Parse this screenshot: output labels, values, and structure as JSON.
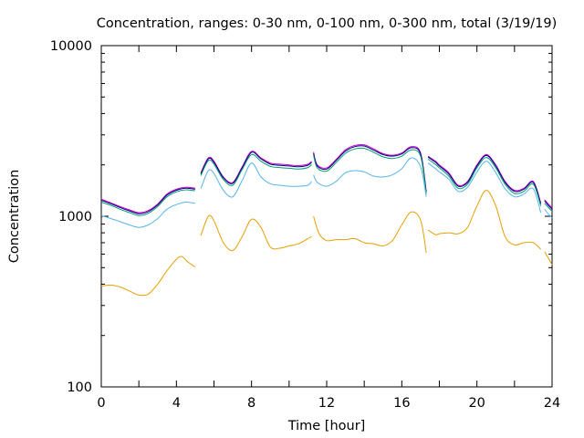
{
  "chart_data": {
    "type": "line",
    "title": "Concentration, ranges: 0-30 nm, 0-100 nm, 0-300 nm, total (3/19/19)",
    "xlabel": "Time [hour]",
    "ylabel": "Concentration",
    "xlim": [
      0,
      24
    ],
    "ylim": [
      100,
      10000
    ],
    "yscale": "log",
    "grid": false,
    "legend": "none",
    "x_ticks": [
      "0",
      "4",
      "8",
      "12",
      "16",
      "20",
      "24"
    ],
    "y_ticks": [
      "100",
      "1000",
      "10000"
    ],
    "series": [
      {
        "color": "#cc00cc",
        "segments": [
          {
            "x": [
              0,
              0.5,
              1,
              1.5,
              2,
              2.5,
              3,
              3.5,
              4,
              4.5,
              5
            ],
            "y": [
              1260,
              1200,
              1140,
              1090,
              1050,
              1080,
              1180,
              1350,
              1440,
              1480,
              1460
            ]
          },
          {
            "x": [
              5.3,
              5.7,
              6,
              6.5,
              7,
              7.5,
              8,
              8.5,
              9,
              9.5,
              10,
              10.5,
              11,
              11.2
            ],
            "y": [
              1800,
              2200,
              2100,
              1700,
              1580,
              1950,
              2400,
              2200,
              2050,
              2020,
              2000,
              1980,
              2020,
              2100
            ]
          },
          {
            "x": [
              11.3,
              11.5,
              12,
              12.5,
              13,
              13.5,
              14,
              14.5,
              15,
              15.5,
              16,
              16.5,
              17,
              17.3
            ],
            "y": [
              2380,
              2000,
              1920,
              2150,
              2450,
              2600,
              2620,
              2480,
              2330,
              2280,
              2350,
              2560,
              2350,
              1400
            ]
          },
          {
            "x": [
              17.4,
              17.8,
              18,
              18.5,
              19,
              19.5,
              20,
              20.5,
              21,
              21.5,
              22,
              22.5,
              23,
              23.4
            ],
            "y": [
              2250,
              2100,
              2000,
              1800,
              1520,
              1600,
              2000,
              2300,
              2000,
              1600,
              1420,
              1460,
              1600,
              1200
            ]
          },
          {
            "x": [
              23.6,
              23.8,
              24
            ],
            "y": [
              1250,
              1180,
              1120
            ]
          }
        ]
      },
      {
        "color": "#000080",
        "segments": [
          {
            "x": [
              0,
              0.5,
              1,
              1.5,
              2,
              2.5,
              3,
              3.5,
              4,
              4.5,
              5
            ],
            "y": [
              1240,
              1185,
              1125,
              1075,
              1035,
              1065,
              1165,
              1330,
              1420,
              1460,
              1440
            ]
          },
          {
            "x": [
              5.3,
              5.7,
              6,
              6.5,
              7,
              7.5,
              8,
              8.5,
              9,
              9.5,
              10,
              10.5,
              11,
              11.2
            ],
            "y": [
              1770,
              2170,
              2070,
              1680,
              1560,
              1920,
              2370,
              2170,
              2020,
              1990,
              1970,
              1950,
              1990,
              2070
            ]
          },
          {
            "x": [
              11.3,
              11.5,
              12,
              12.5,
              13,
              13.5,
              14,
              14.5,
              15,
              15.5,
              16,
              16.5,
              17,
              17.3
            ],
            "y": [
              2340,
              1970,
              1890,
              2120,
              2410,
              2560,
              2580,
              2440,
              2300,
              2250,
              2320,
              2520,
              2320,
              1380
            ]
          },
          {
            "x": [
              17.4,
              17.8,
              18,
              18.5,
              19,
              19.5,
              20,
              20.5,
              21,
              21.5,
              22,
              22.5,
              23,
              23.4
            ],
            "y": [
              2220,
              2070,
              1970,
              1770,
              1500,
              1580,
              1970,
              2270,
              1970,
              1580,
              1400,
              1440,
              1580,
              1180
            ]
          },
          {
            "x": [
              23.6,
              23.8,
              24
            ],
            "y": [
              1230,
              1160,
              1100
            ]
          }
        ]
      },
      {
        "color": "#009e73",
        "segments": [
          {
            "x": [
              0,
              0.5,
              1,
              1.5,
              2,
              2.5,
              3,
              3.5,
              4,
              4.5,
              5
            ],
            "y": [
              1210,
              1160,
              1100,
              1050,
              1010,
              1040,
              1140,
              1300,
              1390,
              1430,
              1410
            ]
          },
          {
            "x": [
              5.3,
              5.7,
              6,
              6.5,
              7,
              7.5,
              8,
              8.5,
              9,
              9.5,
              10,
              10.5,
              11,
              11.2
            ],
            "y": [
              1730,
              2120,
              2020,
              1640,
              1520,
              1880,
              2300,
              2100,
              1960,
              1930,
              1910,
              1890,
              1930,
              2010
            ]
          },
          {
            "x": [
              11.3,
              11.5,
              12,
              12.5,
              13,
              13.5,
              14,
              14.5,
              15,
              15.5,
              16,
              16.5,
              17,
              17.3
            ],
            "y": [
              2280,
              1920,
              1840,
              2060,
              2340,
              2480,
              2500,
              2370,
              2230,
              2180,
              2250,
              2450,
              2250,
              1340
            ]
          },
          {
            "x": [
              17.4,
              17.8,
              18,
              18.5,
              19,
              19.5,
              20,
              20.5,
              21,
              21.5,
              22,
              22.5,
              23,
              23.4
            ],
            "y": [
              2160,
              2010,
              1920,
              1720,
              1460,
              1540,
              1920,
              2210,
              1920,
              1540,
              1360,
              1400,
              1540,
              1150
            ]
          },
          {
            "x": [
              23.6,
              23.8,
              24
            ],
            "y": [
              1190,
              1130,
              1070
            ]
          }
        ]
      },
      {
        "color": "#56b4e9",
        "segments": [
          {
            "x": [
              0,
              0.5,
              1,
              1.5,
              2,
              2.5,
              3,
              3.5,
              4,
              4.5,
              5
            ],
            "y": [
              1010,
              970,
              930,
              890,
              860,
              890,
              970,
              1100,
              1170,
              1210,
              1190
            ]
          },
          {
            "x": [
              5.3,
              5.7,
              6,
              6.5,
              7,
              7.5,
              8,
              8.5,
              9,
              9.5,
              10,
              10.5,
              11,
              11.2
            ],
            "y": [
              1450,
              1850,
              1780,
              1420,
              1300,
              1620,
              2050,
              1700,
              1550,
              1520,
              1500,
              1500,
              1520,
              1600
            ]
          },
          {
            "x": [
              11.3,
              11.5,
              12,
              12.5,
              13,
              13.5,
              14,
              14.5,
              15,
              15.5,
              16,
              16.5,
              17,
              17.3
            ],
            "y": [
              1750,
              1580,
              1500,
              1600,
              1800,
              1850,
              1820,
              1720,
              1700,
              1750,
              1900,
              2200,
              1950,
              1300
            ]
          },
          {
            "x": [
              17.4,
              17.8,
              18,
              18.5,
              19,
              19.5,
              20,
              20.5,
              21,
              21.5,
              22,
              22.5,
              23,
              23.4
            ],
            "y": [
              2050,
              1900,
              1820,
              1650,
              1400,
              1480,
              1820,
              2100,
              1800,
              1450,
              1300,
              1350,
              1450,
              1050
            ]
          },
          {
            "x": [
              23.6,
              23.8,
              24
            ],
            "y": [
              1100,
              1030,
              980
            ]
          }
        ]
      },
      {
        "color": "#e69f00",
        "segments": [
          {
            "x": [
              0,
              0.5,
              1,
              1.5,
              2,
              2.5,
              3,
              3.5,
              4,
              4.3,
              4.6,
              5
            ],
            "y": [
              390,
              395,
              385,
              365,
              345,
              350,
              400,
              480,
              560,
              580,
              540,
              505
            ]
          },
          {
            "x": [
              5.3,
              5.7,
              6,
              6.5,
              7,
              7.5,
              8,
              8.5,
              9,
              9.5,
              10,
              10.5,
              11,
              11.2
            ],
            "y": [
              770,
              1000,
              940,
              700,
              630,
              760,
              960,
              860,
              660,
              650,
              670,
              690,
              740,
              760
            ]
          },
          {
            "x": [
              11.3,
              11.6,
              12,
              12.5,
              13,
              13.5,
              14,
              14.5,
              15,
              15.5,
              16,
              16.5,
              17,
              17.3
            ],
            "y": [
              1000,
              790,
              720,
              730,
              730,
              740,
              700,
              690,
              670,
              720,
              890,
              1060,
              950,
              610
            ]
          },
          {
            "x": [
              17.4,
              17.8,
              18,
              18.5,
              19,
              19.5,
              20,
              20.5,
              21,
              21.5,
              22,
              22.5,
              23,
              23.4
            ],
            "y": [
              830,
              780,
              790,
              800,
              790,
              860,
              1150,
              1420,
              1150,
              760,
              680,
              700,
              700,
              640
            ]
          },
          {
            "x": [
              23.6,
              23.8,
              24
            ],
            "y": [
              620,
              570,
              520
            ]
          }
        ]
      }
    ]
  }
}
